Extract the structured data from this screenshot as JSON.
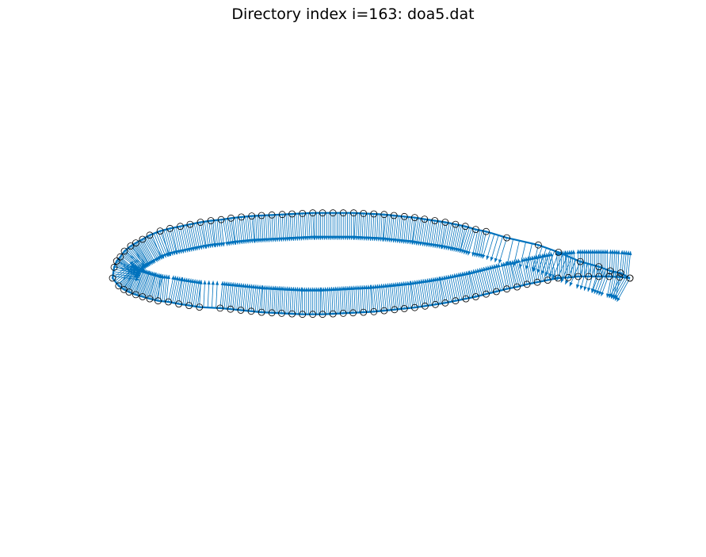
{
  "chart_data": {
    "type": "scatter",
    "title": "Directory index i=163: doa5.dat",
    "xlabel": "",
    "ylabel": "",
    "axes_visible": false,
    "grid": false,
    "aspect": "equal",
    "xlim": [
      -0.02,
      1.02
    ],
    "colors": {
      "surface_line": "#0072BD",
      "normal_arrows": "#0072BD",
      "markers_edge": "#000000"
    },
    "series": [
      {
        "role": "surface",
        "x": [
          1.0,
          0.982,
          0.962,
          0.94,
          0.904,
          0.862,
          0.823,
          0.762,
          0.722,
          0.702,
          0.682,
          0.663,
          0.643,
          0.623,
          0.603,
          0.584,
          0.564,
          0.544,
          0.525,
          0.505,
          0.485,
          0.466,
          0.446,
          0.426,
          0.406,
          0.387,
          0.367,
          0.347,
          0.328,
          0.308,
          0.288,
          0.269,
          0.249,
          0.229,
          0.21,
          0.19,
          0.17,
          0.15,
          0.131,
          0.111,
          0.092,
          0.072,
          0.058,
          0.045,
          0.035,
          0.023,
          0.015,
          0.008,
          0.003,
          0.0,
          0.012,
          0.022,
          0.032,
          0.045,
          0.058,
          0.072,
          0.088,
          0.108,
          0.128,
          0.148,
          0.168,
          0.208,
          0.228,
          0.248,
          0.268,
          0.288,
          0.308,
          0.327,
          0.347,
          0.367,
          0.387,
          0.406,
          0.426,
          0.446,
          0.465,
          0.485,
          0.505,
          0.525,
          0.545,
          0.564,
          0.584,
          0.604,
          0.624,
          0.643,
          0.663,
          0.683,
          0.702,
          0.722,
          0.742,
          0.762,
          0.782,
          0.801,
          0.821,
          0.841,
          0.861,
          0.881,
          0.9,
          0.92,
          0.94,
          0.96,
          0.98,
          1.0
        ],
        "y": [
          0.0,
          0.01,
          0.014,
          0.022,
          0.032,
          0.05,
          0.064,
          0.078,
          0.09,
          0.094,
          0.1,
          0.104,
          0.108,
          0.111,
          0.114,
          0.117,
          0.119,
          0.121,
          0.123,
          0.124,
          0.125,
          0.126,
          0.126,
          0.126,
          0.126,
          0.126,
          0.125,
          0.124,
          0.123,
          0.122,
          0.121,
          0.12,
          0.118,
          0.116,
          0.113,
          0.111,
          0.108,
          0.104,
          0.1,
          0.096,
          0.091,
          0.083,
          0.075,
          0.068,
          0.062,
          0.052,
          0.041,
          0.033,
          0.021,
          0.0,
          -0.015,
          -0.022,
          -0.027,
          -0.032,
          -0.036,
          -0.04,
          -0.044,
          -0.046,
          -0.05,
          -0.053,
          -0.056,
          -0.058,
          -0.06,
          -0.062,
          -0.064,
          -0.066,
          -0.067,
          -0.068,
          -0.069,
          -0.07,
          -0.07,
          -0.07,
          -0.069,
          -0.068,
          -0.067,
          -0.066,
          -0.065,
          -0.063,
          -0.061,
          -0.059,
          -0.057,
          -0.054,
          -0.051,
          -0.048,
          -0.044,
          -0.04,
          -0.036,
          -0.031,
          -0.026,
          -0.021,
          -0.017,
          -0.012,
          -0.008,
          -0.004,
          0.0,
          0.001,
          0.003,
          0.003,
          0.003,
          0.003,
          0.002,
          0.0
        ]
      }
    ]
  }
}
